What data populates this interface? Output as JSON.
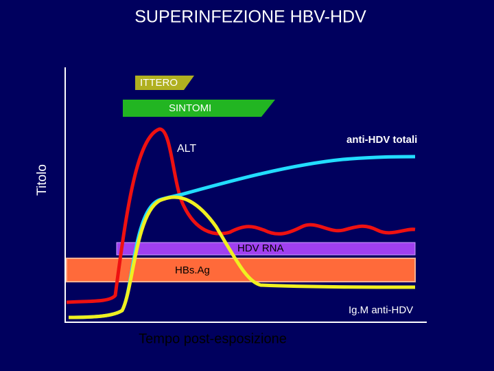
{
  "header": {
    "title": "SUPERINFEZIONE HBV-HDV"
  },
  "axes": {
    "y_label": "Titolo",
    "x_label": "Tempo post-esposizione"
  },
  "bands": {
    "ittero": "ITTERO",
    "sintomi": "SINTOMI",
    "hdv_rna": "HDV RNA",
    "hbsag": "HBs.Ag"
  },
  "curves": {
    "alt": "ALT",
    "anti_hdv_totali": "anti-HDV totali",
    "igm_anti_hdv": "Ig.M anti-HDV"
  }
}
